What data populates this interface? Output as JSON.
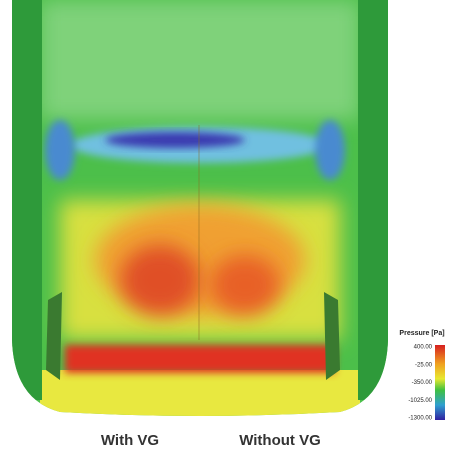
{
  "captions": {
    "left": "With VG",
    "right": "Without VG"
  },
  "colorbar": {
    "title": "Pressure [Pa]",
    "ticks": [
      "400.00",
      "-25.00",
      "-350.00",
      "-1025.00",
      "-1300.00"
    ]
  }
}
